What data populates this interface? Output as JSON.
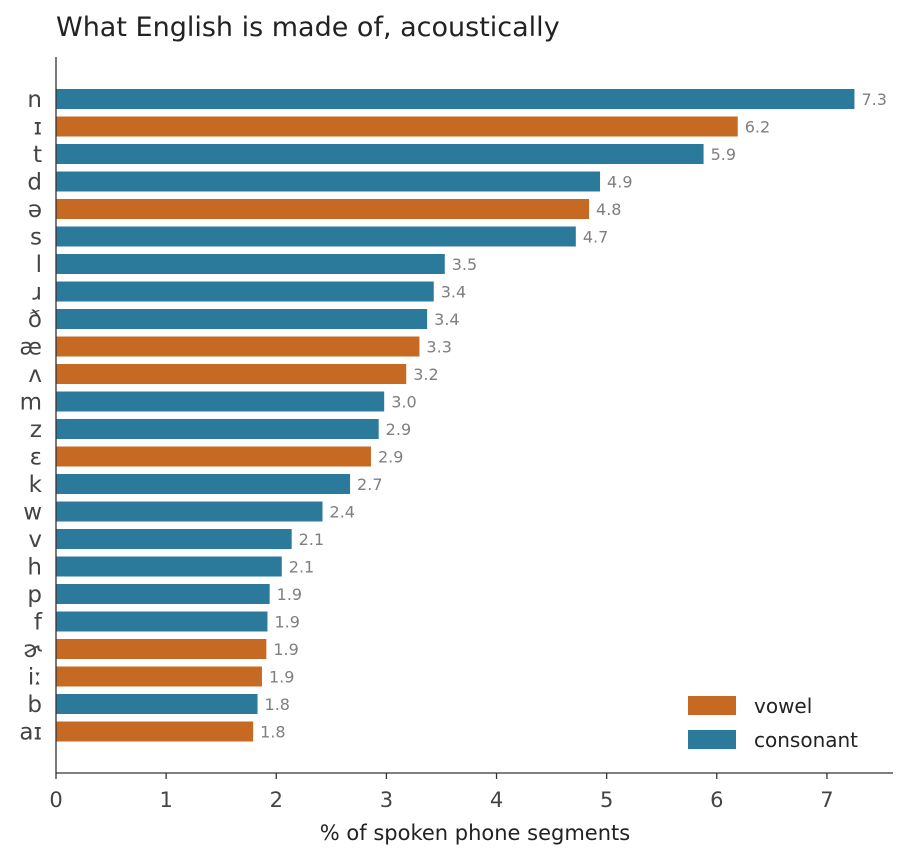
{
  "chart_data": {
    "type": "bar",
    "orientation": "horizontal",
    "title": "What English is made of, acoustically",
    "xlabel": "% of spoken phone segments",
    "ylabel": "",
    "xlim": [
      0,
      7.6
    ],
    "xticks": [
      0,
      1,
      2,
      3,
      4,
      5,
      6,
      7
    ],
    "grid": false,
    "legend_position": "bottom-right",
    "colors": {
      "vowel": "#c66a23",
      "consonant": "#2c7a9b"
    },
    "legend": [
      {
        "key": "vowel",
        "label": "vowel"
      },
      {
        "key": "consonant",
        "label": "consonant"
      }
    ],
    "categories": [
      "n",
      "ɪ",
      "t",
      "d",
      "ə",
      "s",
      "l",
      "ɹ",
      "ð",
      "æ",
      "ʌ",
      "m",
      "z",
      "ɛ",
      "k",
      "w",
      "v",
      "h",
      "p",
      "f",
      "ɚ",
      "iː",
      "b",
      "aɪ"
    ],
    "values": [
      7.25,
      6.19,
      5.88,
      4.94,
      4.84,
      4.72,
      3.53,
      3.43,
      3.37,
      3.3,
      3.18,
      2.98,
      2.93,
      2.86,
      2.67,
      2.42,
      2.14,
      2.05,
      1.94,
      1.92,
      1.91,
      1.87,
      1.83,
      1.79
    ],
    "labels": [
      "7.3",
      "6.2",
      "5.9",
      "4.9",
      "4.8",
      "4.7",
      "3.5",
      "3.4",
      "3.4",
      "3.3",
      "3.2",
      "3.0",
      "2.9",
      "2.9",
      "2.7",
      "2.4",
      "2.1",
      "2.1",
      "1.9",
      "1.9",
      "1.9",
      "1.9",
      "1.8",
      "1.8"
    ],
    "groups": [
      "consonant",
      "vowel",
      "consonant",
      "consonant",
      "vowel",
      "consonant",
      "consonant",
      "consonant",
      "consonant",
      "vowel",
      "vowel",
      "consonant",
      "consonant",
      "vowel",
      "consonant",
      "consonant",
      "consonant",
      "consonant",
      "consonant",
      "consonant",
      "vowel",
      "vowel",
      "consonant",
      "vowel"
    ]
  }
}
